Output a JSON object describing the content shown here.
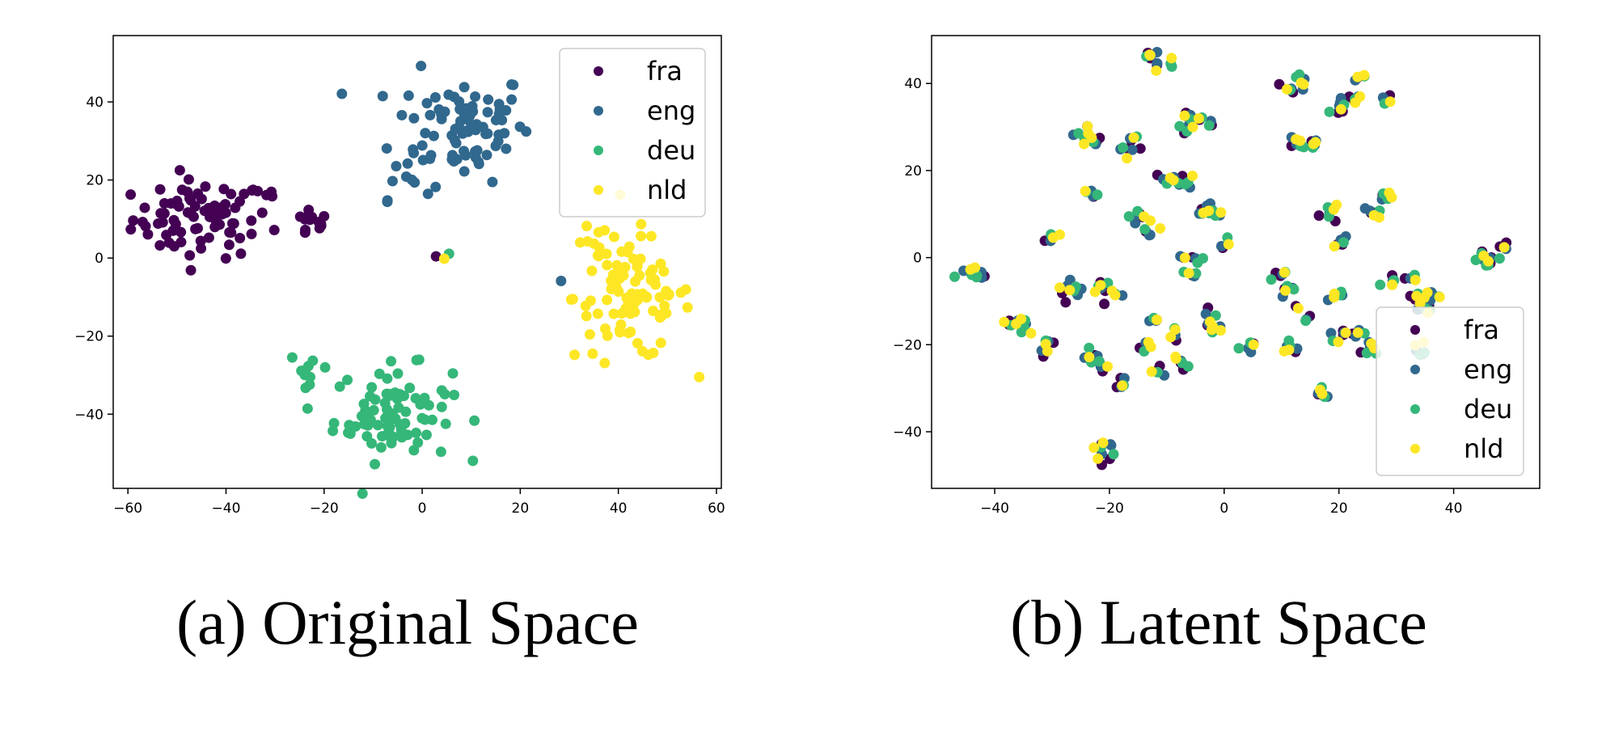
{
  "captions": {
    "a": "(a) Original Space",
    "b": "(b) Latent Space"
  },
  "colors": {
    "fra": "#440154",
    "eng": "#31688e",
    "deu": "#35b779",
    "nld": "#fde725"
  },
  "chart_data": [
    {
      "type": "scatter",
      "title": "",
      "xlabel": "",
      "ylabel": "",
      "xlim": [
        -63,
        61
      ],
      "ylim": [
        -59,
        57
      ],
      "xticks": [
        -60,
        -40,
        -20,
        0,
        20,
        40,
        60
      ],
      "yticks": [
        -40,
        -20,
        0,
        20,
        40
      ],
      "grid": false,
      "legend": "top-right",
      "series": [
        {
          "name": "fra",
          "clusters": [
            {
              "center": [
                -45,
                10
              ],
              "spread": [
                7,
                5
              ],
              "count": 80
            },
            {
              "center": [
                -23,
                9
              ],
              "spread": [
                2,
                2
              ],
              "count": 14
            },
            {
              "center": [
                -30,
                16
              ],
              "spread": [
                1,
                0.5
              ],
              "count": 3
            },
            {
              "center": [
                3,
                1
              ],
              "spread": [
                0.5,
                0.5
              ],
              "count": 1
            }
          ]
        },
        {
          "name": "eng",
          "clusters": [
            {
              "center": [
                8,
                34
              ],
              "spread": [
                7,
                7
              ],
              "count": 85
            },
            {
              "center": [
                -4,
                19
              ],
              "spread": [
                3,
                2
              ],
              "count": 8
            },
            {
              "center": [
                29,
                -6
              ],
              "spread": [
                0.5,
                0.5
              ],
              "count": 1
            }
          ]
        },
        {
          "name": "deu",
          "clusters": [
            {
              "center": [
                -6,
                -40
              ],
              "spread": [
                6,
                6
              ],
              "count": 85
            },
            {
              "center": [
                -23,
                -28
              ],
              "spread": [
                2,
                2
              ],
              "count": 10
            },
            {
              "center": [
                5,
                0
              ],
              "spread": [
                0.5,
                0.5
              ],
              "count": 1
            }
          ]
        },
        {
          "name": "nld",
          "clusters": [
            {
              "center": [
                43,
                -10
              ],
              "spread": [
                6,
                8
              ],
              "count": 90
            },
            {
              "center": [
                34,
                4
              ],
              "spread": [
                2,
                2
              ],
              "count": 8
            },
            {
              "center": [
                4,
                0
              ],
              "spread": [
                0.5,
                0.5
              ],
              "count": 1
            }
          ]
        }
      ]
    },
    {
      "type": "scatter",
      "title": "",
      "xlabel": "",
      "ylabel": "",
      "xlim": [
        -51,
        55
      ],
      "ylim": [
        -53,
        51
      ],
      "xticks": [
        -40,
        -20,
        0,
        20,
        40
      ],
      "yticks": [
        -40,
        -20,
        0,
        20,
        40
      ],
      "grid": false,
      "legend": "bottom-right",
      "groups": [
        [
          -45,
          -3
        ],
        [
          -43,
          -4
        ],
        [
          -37,
          -15
        ],
        [
          -35,
          -16
        ],
        [
          -31,
          -20
        ],
        [
          -30,
          4
        ],
        [
          -28,
          -6
        ],
        [
          -26,
          -8
        ],
        [
          -24,
          29
        ],
        [
          -23,
          27
        ],
        [
          -23,
          15
        ],
        [
          -23,
          -23
        ],
        [
          -21,
          -25
        ],
        [
          -20,
          -46
        ],
        [
          -21,
          -43
        ],
        [
          -21,
          -6
        ],
        [
          -19,
          -9
        ],
        [
          -18,
          -29
        ],
        [
          -17,
          25
        ],
        [
          -15,
          27
        ],
        [
          -15,
          10
        ],
        [
          -14,
          6
        ],
        [
          -14,
          -20
        ],
        [
          -12,
          -14
        ],
        [
          -12,
          -26
        ],
        [
          -13,
          46
        ],
        [
          -11,
          44
        ],
        [
          -10,
          18
        ],
        [
          -9,
          -18
        ],
        [
          -8,
          -24
        ],
        [
          -7,
          18
        ],
        [
          -6,
          0
        ],
        [
          -6,
          -4
        ],
        [
          -7,
          30
        ],
        [
          -6,
          32
        ],
        [
          -3,
          31
        ],
        [
          -3,
          10
        ],
        [
          -1,
          11
        ],
        [
          -2,
          -14
        ],
        [
          -1,
          -16
        ],
        [
          1,
          3
        ],
        [
          4,
          -20
        ],
        [
          10,
          -5
        ],
        [
          11,
          -7
        ],
        [
          12,
          -20
        ],
        [
          13,
          -12
        ],
        [
          11,
          39
        ],
        [
          13,
          41
        ],
        [
          13,
          26
        ],
        [
          15,
          26
        ],
        [
          17,
          -31
        ],
        [
          19,
          10
        ],
        [
          20,
          3
        ],
        [
          19,
          -9
        ],
        [
          20,
          34
        ],
        [
          22,
          36
        ],
        [
          24,
          41
        ],
        [
          20,
          -18
        ],
        [
          23,
          -17
        ],
        [
          25,
          -21
        ],
        [
          26,
          10
        ],
        [
          28,
          14
        ],
        [
          28,
          36
        ],
        [
          29,
          -6
        ],
        [
          33,
          -5
        ],
        [
          34,
          -9
        ],
        [
          35,
          -12
        ],
        [
          36,
          -9
        ],
        [
          34,
          -21
        ],
        [
          44,
          0
        ],
        [
          46,
          -1
        ],
        [
          49,
          2
        ]
      ],
      "series": [
        {
          "name": "fra"
        },
        {
          "name": "eng"
        },
        {
          "name": "deu"
        },
        {
          "name": "nld"
        }
      ]
    }
  ],
  "axis_labels": {
    "a": {
      "x": [
        "−60",
        "−40",
        "−20",
        "0",
        "20",
        "40",
        "60"
      ],
      "y": [
        "−40",
        "−20",
        "0",
        "20",
        "40"
      ]
    },
    "b": {
      "x": [
        "−40",
        "−20",
        "0",
        "20",
        "40"
      ],
      "y": [
        "−40",
        "−20",
        "0",
        "20",
        "40"
      ]
    }
  }
}
